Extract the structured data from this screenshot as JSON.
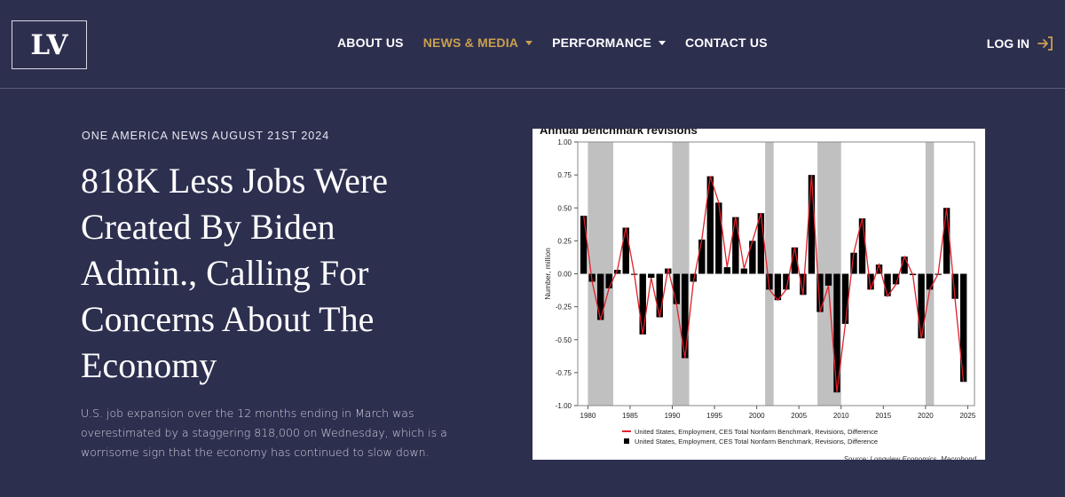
{
  "header": {
    "logo_text": "LV",
    "nav": [
      {
        "label": "ABOUT US",
        "has_dropdown": false,
        "active": false
      },
      {
        "label": "NEWS & MEDIA",
        "has_dropdown": true,
        "active": true
      },
      {
        "label": "PERFORMANCE",
        "has_dropdown": true,
        "active": false
      },
      {
        "label": "CONTACT US",
        "has_dropdown": false,
        "active": false
      }
    ],
    "login_label": "LOG IN",
    "login_icon": "login-arrow-icon"
  },
  "article": {
    "kicker": "ONE AMERICA NEWS AUGUST 21ST 2024",
    "headline": "818K Less Jobs Were Created By Biden Admin., Calling For Concerns About The Economy",
    "summary": "U.S. job expansion over the 12 months ending in March was overestimated by a staggering 818,000 on Wednesday, which is a worrisome sign that the economy has continued to slow down."
  },
  "colors": {
    "background": "#2d2f4f",
    "accent": "#c9a04e",
    "text": "#ffffff",
    "line_series": "#e0202a",
    "bar_series": "#000000",
    "recession_shade": "#c0c0c0"
  },
  "chart_data": {
    "type": "bar",
    "title": "Annual benchmark revisions",
    "xlabel": "",
    "ylabel": "Number, million",
    "ylim": [
      -1.0,
      1.0
    ],
    "yticks": [
      "1.00",
      "0.75",
      "0.50",
      "0.25",
      "0.00",
      "-0.25",
      "-0.50",
      "-0.75",
      "-1.00"
    ],
    "xticks": [
      "1980",
      "1985",
      "1990",
      "1995",
      "2000",
      "2005",
      "2010",
      "2015",
      "2020",
      "2025"
    ],
    "grid": false,
    "legend_position": "bottom",
    "x": [
      1979,
      1980,
      1981,
      1982,
      1983,
      1984,
      1985,
      1986,
      1987,
      1988,
      1989,
      1990,
      1991,
      1992,
      1993,
      1994,
      1995,
      1996,
      1997,
      1998,
      1999,
      2000,
      2001,
      2002,
      2003,
      2004,
      2005,
      2006,
      2007,
      2008,
      2009,
      2010,
      2011,
      2012,
      2013,
      2014,
      2015,
      2016,
      2017,
      2018,
      2019,
      2020,
      2021,
      2022,
      2023,
      2024
    ],
    "series": [
      {
        "name": "United States, Employment, CES Total Nonfarm Benchmark, Revisions, Difference",
        "render": "bar",
        "color": "#000000",
        "values": [
          0.44,
          -0.06,
          -0.35,
          -0.11,
          0.03,
          0.35,
          0.0,
          -0.46,
          -0.03,
          -0.33,
          0.04,
          -0.23,
          -0.64,
          -0.06,
          0.26,
          0.74,
          0.54,
          0.05,
          0.43,
          0.04,
          0.25,
          0.46,
          -0.12,
          -0.2,
          -0.12,
          0.2,
          -0.16,
          0.75,
          -0.29,
          -0.09,
          -0.9,
          -0.38,
          0.16,
          0.42,
          -0.12,
          0.07,
          -0.17,
          -0.08,
          0.13,
          -0.01,
          -0.49,
          -0.12,
          0.0,
          0.5,
          -0.19,
          -0.82
        ]
      },
      {
        "name": "United States, Employment, CES Total Nonfarm Benchmark, Revisions, Difference",
        "render": "line",
        "color": "#e0202a",
        "values": [
          0.44,
          -0.06,
          -0.35,
          -0.11,
          0.03,
          0.35,
          0.0,
          -0.46,
          -0.03,
          -0.33,
          0.04,
          -0.23,
          -0.64,
          -0.06,
          0.26,
          0.74,
          0.54,
          0.05,
          0.43,
          0.04,
          0.25,
          0.46,
          -0.12,
          -0.2,
          -0.12,
          0.2,
          -0.16,
          0.75,
          -0.29,
          -0.09,
          -0.9,
          -0.38,
          0.16,
          0.42,
          -0.12,
          0.07,
          -0.17,
          -0.08,
          0.13,
          -0.01,
          -0.49,
          -0.12,
          0.0,
          0.5,
          -0.19,
          -0.82
        ]
      }
    ],
    "shaded_periods": [
      [
        1980.0,
        1983.0
      ],
      [
        1990.0,
        1992.0
      ],
      [
        2001.0,
        2002.0
      ],
      [
        2007.2,
        2010.0
      ],
      [
        2020.0,
        2021.0
      ]
    ],
    "source": "Source: Longview Economics, Macrobond"
  }
}
